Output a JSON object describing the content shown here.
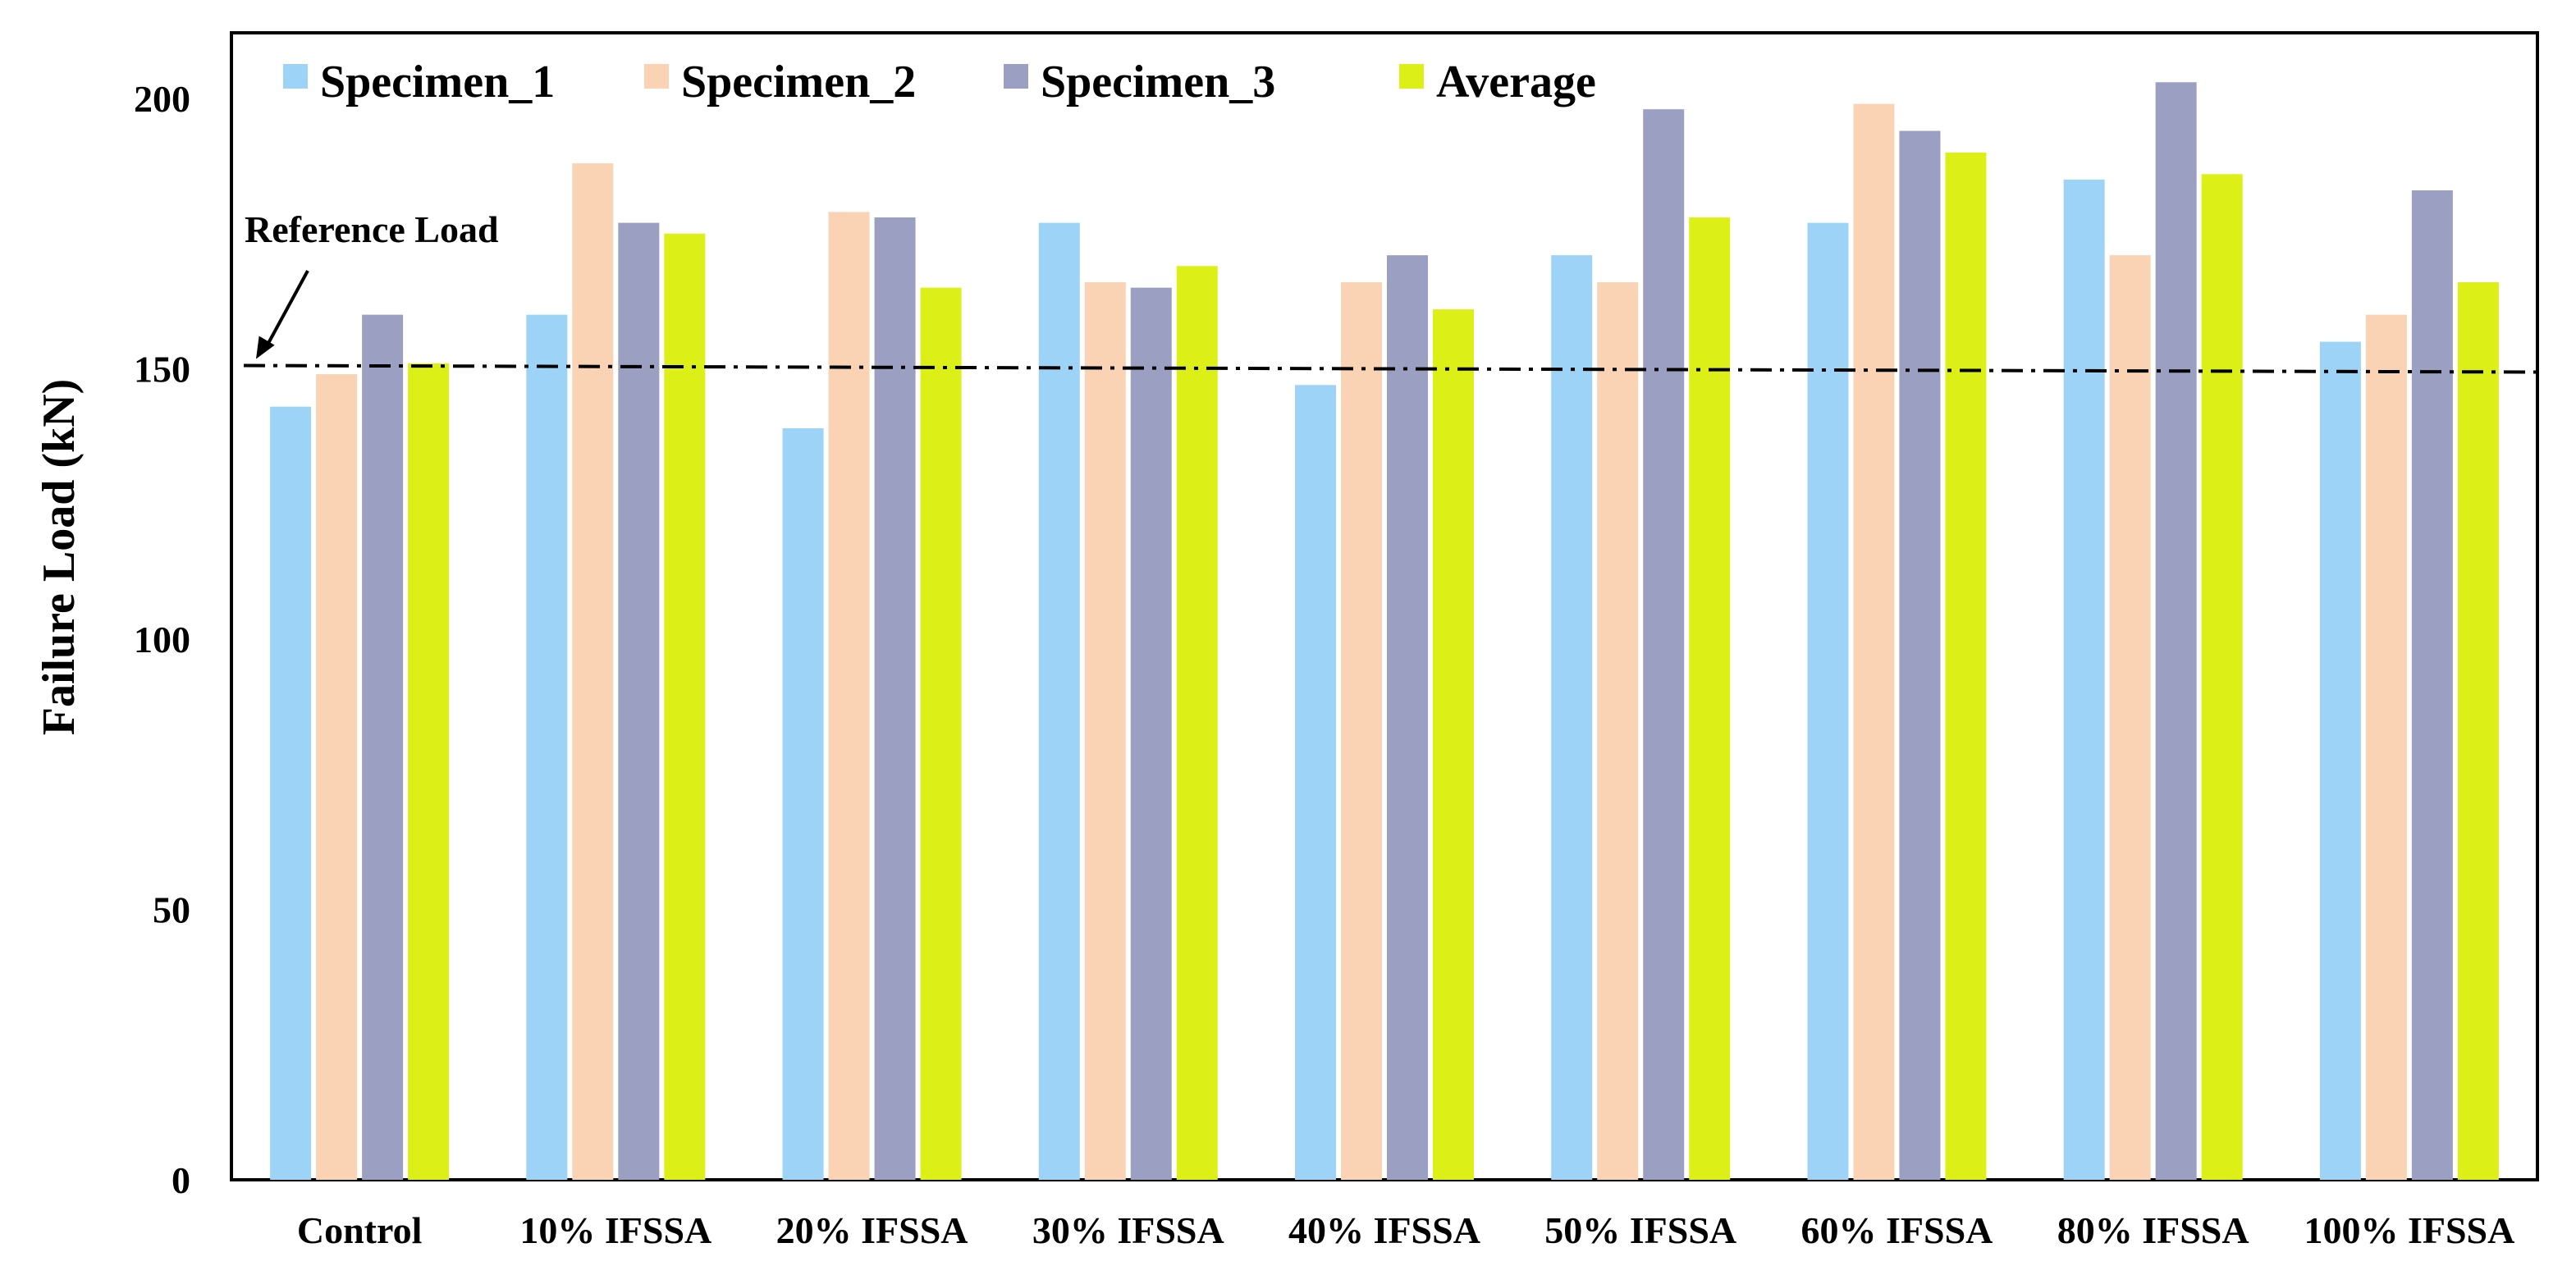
{
  "chart_data": {
    "type": "bar",
    "title": "",
    "xlabel": "",
    "ylabel": "Failure Load (kN)",
    "ylim": [
      0,
      210
    ],
    "yticks": [
      0,
      50,
      100,
      150,
      200
    ],
    "grid": false,
    "legend_position": "top-left",
    "categories": [
      "Control",
      "10% IFSSA",
      "20% IFSSA",
      "30% IFSSA",
      "40% IFSSA",
      "50% IFSSA",
      "60% IFSSA",
      "80% IFSSA",
      "100% IFSSA"
    ],
    "series": [
      {
        "name": "Specimen_1",
        "color": "#9dd3f7",
        "values": [
          143,
          160,
          139,
          177,
          147,
          171,
          177,
          185,
          155
        ]
      },
      {
        "name": "Specimen_2",
        "color": "#fad2b4",
        "values": [
          149,
          188,
          179,
          166,
          166,
          166,
          199,
          171,
          160
        ]
      },
      {
        "name": "Specimen_3",
        "color": "#9b9fc1",
        "values": [
          160,
          177,
          178,
          165,
          171,
          198,
          194,
          203,
          183
        ]
      },
      {
        "name": "Average",
        "color": "#dcef17",
        "values": [
          151,
          175,
          165,
          169,
          161,
          178,
          190,
          186,
          166
        ]
      }
    ],
    "reference_line": {
      "label": "Reference Load",
      "value": 150,
      "style": "dash-dot"
    }
  }
}
